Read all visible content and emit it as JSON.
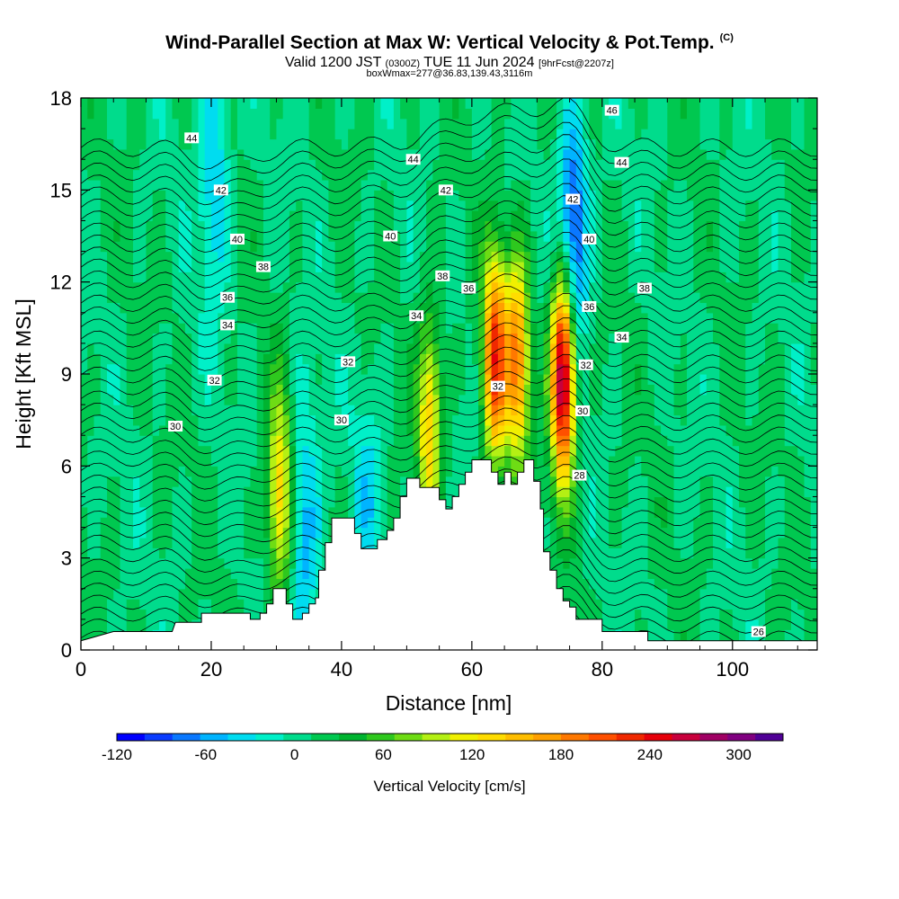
{
  "title": {
    "main": "Wind-Parallel Section at Max W: Vertical Velocity & Pot.Temp.",
    "copyright": "(C)",
    "valid_prefix": "Valid 1200 JST",
    "utc": "(0300Z)",
    "valid_date": "TUE 11 Jun 2024",
    "forecast": "[9hrFcst@2207z]",
    "box": "boxWmax=277@36.83,139.43,3116m"
  },
  "chart_data": {
    "type": "heatmap",
    "xlabel": "Distance [nm]",
    "ylabel": "Height [Kft MSL]",
    "xlim": [
      0,
      113
    ],
    "ylim": [
      0,
      18
    ],
    "x_ticks": [
      0,
      20,
      40,
      60,
      80,
      100
    ],
    "y_ticks": [
      0,
      3,
      6,
      9,
      12,
      15,
      18
    ],
    "grid": false,
    "colorbar": {
      "label": "Vertical Velocity [cm/s]",
      "ticks": [
        -120,
        -60,
        0,
        60,
        120,
        180,
        240,
        300
      ],
      "min": -120,
      "max": 330,
      "colors": [
        "#0000ff",
        "#0a3cff",
        "#0a78ff",
        "#00b4ff",
        "#00dcf0",
        "#00f0c8",
        "#00dc8c",
        "#00c850",
        "#00b430",
        "#2ec81e",
        "#6edc14",
        "#b4f014",
        "#f0f000",
        "#ffdc00",
        "#ffbe00",
        "#ffa000",
        "#ff7800",
        "#ff5000",
        "#f02800",
        "#e6000a",
        "#c8003c",
        "#a00064",
        "#800080",
        "#500096"
      ]
    },
    "updrafts": [
      {
        "x": 30.5,
        "y": 5.0,
        "w_max": 130
      },
      {
        "x": 53.5,
        "y": 7.5,
        "w_max": 130
      },
      {
        "x": 63.5,
        "y": 9.5,
        "w_max": 210
      },
      {
        "x": 67,
        "y": 9.5,
        "w_max": 170
      },
      {
        "x": 74,
        "y": 9.0,
        "w_max": 300
      }
    ],
    "downdrafts": [
      {
        "x": 34.5,
        "y": 4.0,
        "w_min": -70
      },
      {
        "x": 20.5,
        "y": 15.5,
        "w_min": -60
      },
      {
        "x": 75.5,
        "y": 13.5,
        "w_min": -120
      },
      {
        "x": 44,
        "y": 5.0,
        "w_min": -40
      }
    ],
    "terrain": [
      [
        0,
        0.3
      ],
      [
        5,
        0.6
      ],
      [
        14,
        0.6
      ],
      [
        14.5,
        0.9
      ],
      [
        18.5,
        0.9
      ],
      [
        18.5,
        1.2
      ],
      [
        26,
        1.2
      ],
      [
        26,
        1.0
      ],
      [
        27.5,
        1.0
      ],
      [
        27.5,
        1.2
      ],
      [
        28.5,
        1.2
      ],
      [
        28.5,
        1.5
      ],
      [
        29.5,
        1.5
      ],
      [
        29.5,
        2.0
      ],
      [
        31.5,
        2.0
      ],
      [
        31.5,
        1.5
      ],
      [
        32.5,
        1.5
      ],
      [
        32.5,
        1.0
      ],
      [
        34,
        1.0
      ],
      [
        34,
        1.2
      ],
      [
        35,
        1.2
      ],
      [
        35,
        1.5
      ],
      [
        36,
        1.5
      ],
      [
        36,
        1.7
      ],
      [
        36.5,
        1.7
      ],
      [
        36.5,
        2.6
      ],
      [
        37.5,
        2.6
      ],
      [
        37.5,
        3.5
      ],
      [
        38.5,
        3.5
      ],
      [
        38.5,
        4.3
      ],
      [
        42,
        4.3
      ],
      [
        42,
        3.8
      ],
      [
        43,
        3.8
      ],
      [
        43,
        3.3
      ],
      [
        45.5,
        3.3
      ],
      [
        45.5,
        3.6
      ],
      [
        47,
        3.6
      ],
      [
        47,
        3.9
      ],
      [
        48,
        3.9
      ],
      [
        48,
        4.3
      ],
      [
        49,
        4.3
      ],
      [
        49,
        5.0
      ],
      [
        50,
        5.0
      ],
      [
        50,
        5.6
      ],
      [
        52,
        5.6
      ],
      [
        52,
        5.3
      ],
      [
        55,
        5.3
      ],
      [
        55,
        4.9
      ],
      [
        56,
        4.9
      ],
      [
        56,
        4.6
      ],
      [
        57,
        4.6
      ],
      [
        57,
        5.0
      ],
      [
        58,
        5.0
      ],
      [
        58,
        5.4
      ],
      [
        59,
        5.4
      ],
      [
        59,
        5.8
      ],
      [
        60,
        5.8
      ],
      [
        60,
        6.2
      ],
      [
        63,
        6.2
      ],
      [
        63,
        5.8
      ],
      [
        64,
        5.8
      ],
      [
        64,
        5.4
      ],
      [
        65,
        5.4
      ],
      [
        65,
        5.8
      ],
      [
        66,
        5.8
      ],
      [
        66,
        5.4
      ],
      [
        67,
        5.4
      ],
      [
        67,
        5.8
      ],
      [
        68,
        5.8
      ],
      [
        68,
        6.2
      ],
      [
        69.5,
        6.2
      ],
      [
        69.5,
        5.5
      ],
      [
        70.5,
        5.5
      ],
      [
        70.5,
        4.6
      ],
      [
        71,
        4.6
      ],
      [
        71,
        3.2
      ],
      [
        72,
        3.2
      ],
      [
        72,
        2.6
      ],
      [
        73,
        2.6
      ],
      [
        73,
        2.0
      ],
      [
        74,
        2.0
      ],
      [
        74,
        1.6
      ],
      [
        75,
        1.6
      ],
      [
        75,
        1.4
      ],
      [
        76,
        1.4
      ],
      [
        76,
        1.0
      ],
      [
        80,
        1.0
      ],
      [
        80,
        0.6
      ],
      [
        87,
        0.6
      ],
      [
        87,
        0.3
      ],
      [
        113,
        0.3
      ]
    ],
    "theta_contour_labels": [
      {
        "text": "46",
        "x": 81.5,
        "y": 17.6
      },
      {
        "text": "44",
        "x": 17,
        "y": 16.7
      },
      {
        "text": "44",
        "x": 51,
        "y": 16.0
      },
      {
        "text": "44",
        "x": 83,
        "y": 15.9
      },
      {
        "text": "42",
        "x": 21.5,
        "y": 15.0
      },
      {
        "text": "42",
        "x": 56,
        "y": 15.0
      },
      {
        "text": "42",
        "x": 75.5,
        "y": 14.7
      },
      {
        "text": "40",
        "x": 24,
        "y": 13.4
      },
      {
        "text": "40",
        "x": 47.5,
        "y": 13.5
      },
      {
        "text": "40",
        "x": 78,
        "y": 13.4
      },
      {
        "text": "38",
        "x": 28,
        "y": 12.5
      },
      {
        "text": "38",
        "x": 55.5,
        "y": 12.2
      },
      {
        "text": "38",
        "x": 86.5,
        "y": 11.8
      },
      {
        "text": "36",
        "x": 22.5,
        "y": 11.5
      },
      {
        "text": "36",
        "x": 59.5,
        "y": 11.8
      },
      {
        "text": "36",
        "x": 78,
        "y": 11.2
      },
      {
        "text": "34",
        "x": 22.5,
        "y": 10.6
      },
      {
        "text": "34",
        "x": 51.5,
        "y": 10.9
      },
      {
        "text": "34",
        "x": 83,
        "y": 10.2
      },
      {
        "text": "32",
        "x": 20.5,
        "y": 8.8
      },
      {
        "text": "32",
        "x": 41,
        "y": 9.4
      },
      {
        "text": "32",
        "x": 64,
        "y": 8.6
      },
      {
        "text": "32",
        "x": 77.5,
        "y": 9.3
      },
      {
        "text": "30",
        "x": 14.5,
        "y": 7.3
      },
      {
        "text": "30",
        "x": 40,
        "y": 7.5
      },
      {
        "text": "30",
        "x": 77,
        "y": 7.8
      },
      {
        "text": "28",
        "x": 76.5,
        "y": 5.7
      },
      {
        "text": "26",
        "x": 104,
        "y": 0.6
      }
    ]
  }
}
